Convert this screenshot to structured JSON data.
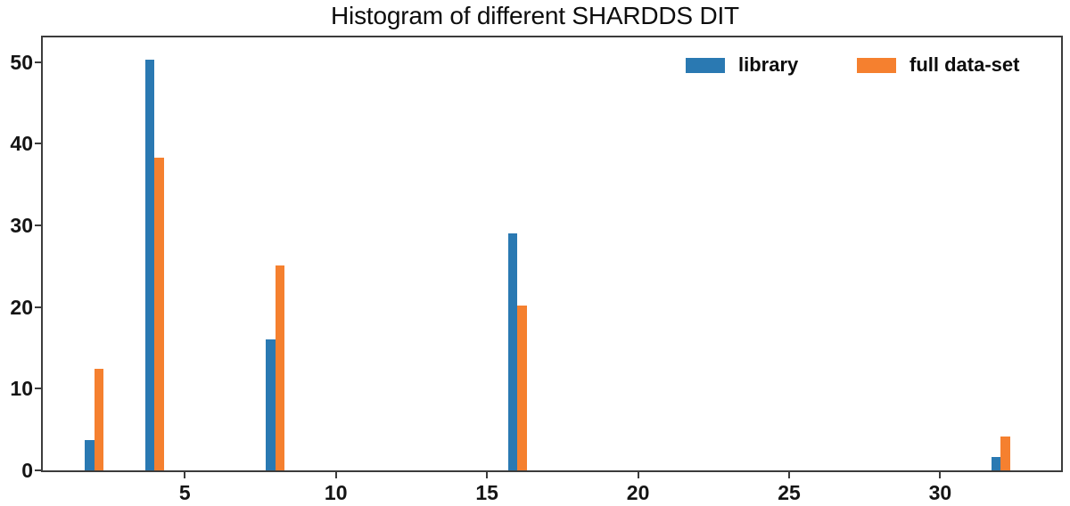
{
  "chart_data": {
    "type": "bar",
    "title": "Histogram of different SHARDDS DIT",
    "x": [
      2,
      4,
      8,
      16,
      32
    ],
    "series": [
      {
        "name": "library",
        "color": "#2a79b2",
        "values": [
          3.7,
          50.3,
          16.0,
          29.0,
          1.6
        ]
      },
      {
        "name": "full data-set",
        "color": "#f5802f",
        "values": [
          12.4,
          38.3,
          25.1,
          20.2,
          4.1
        ]
      }
    ],
    "xticks": [
      5,
      10,
      15,
      20,
      25,
      30
    ],
    "yticks": [
      0,
      10,
      20,
      30,
      40,
      50
    ],
    "xlim": [
      0.3,
      34.0
    ],
    "ylim": [
      0,
      53
    ],
    "xlabel": "",
    "ylabel": "",
    "grid": false,
    "legend_position": "upper right",
    "legend_frame": false
  },
  "colors": {
    "axis": "#3c3c3c",
    "background": "#ffffff",
    "library_bar": "#2a79b2",
    "full_dataset_bar": "#f5802f"
  }
}
